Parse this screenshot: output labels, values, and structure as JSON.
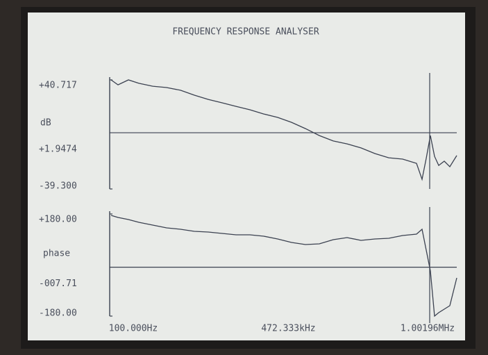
{
  "chart_data": [
    {
      "type": "line",
      "title": "FREQUENCY RESPONSE ANALYSER",
      "ylabel": "dB",
      "color": "#3b4150",
      "x": [
        100,
        21927,
        54667,
        87408,
        131063,
        174718,
        218372,
        262027,
        305682,
        349337,
        392992,
        436646,
        480301,
        523956,
        567611,
        611266,
        654920,
        698575,
        742230,
        785885,
        829540,
        873194,
        916849,
        960504,
        977966,
        991062,
        1004158,
        1017254,
        1030350,
        1047812,
        1065274,
        1087100
      ],
      "values": [
        40.7,
        37.1,
        40.7,
        38.2,
        36.1,
        35.1,
        33.1,
        29.5,
        26.4,
        23.9,
        21.3,
        18.8,
        15.7,
        13.2,
        9.6,
        5.0,
        -0.1,
        -4.1,
        -6.2,
        -9.2,
        -13.3,
        -16.4,
        -17.4,
        -20.5,
        -32.2,
        -16.9,
        -0.1,
        -15.4,
        -22.0,
        -18.9,
        -23.0,
        -14.8
      ],
      "xlim": [
        100,
        1087100
      ],
      "ylim": [
        -39.3,
        40.717
      ],
      "yticks": [
        {
          "value": 40.717,
          "label": "+40.717"
        },
        {
          "value": 1.9474,
          "label": "+1.9474"
        },
        {
          "value": -39.3,
          "label": "-39.300"
        }
      ]
    },
    {
      "type": "line",
      "ylabel": "phase",
      "color": "#3b4150",
      "x": [
        100,
        21927,
        54667,
        87408,
        131063,
        174718,
        218372,
        262027,
        305682,
        349337,
        392992,
        436646,
        480301,
        523956,
        567611,
        611266,
        654920,
        698575,
        742230,
        785885,
        829540,
        873194,
        916849,
        960504,
        977966,
        991062,
        1004158,
        1017254,
        1030350,
        1047812,
        1065274,
        1087100
      ],
      "values": [
        175.1,
        167.8,
        160.4,
        150.6,
        140.8,
        131.0,
        126.1,
        118.8,
        116.3,
        111.4,
        106.5,
        106.5,
        101.6,
        91.8,
        79.6,
        72.2,
        74.7,
        89.4,
        96.7,
        86.9,
        91.8,
        94.3,
        104.1,
        109.0,
        126.1,
        52.7,
        -20.8,
        -180,
        -167.8,
        -155.5,
        -143.3,
        -45.3
      ],
      "xlim": [
        100,
        1087100
      ],
      "ylim": [
        -180,
        180
      ],
      "yticks": [
        {
          "value": 180,
          "label": "+180.00"
        },
        {
          "value": -7.71,
          "label": "-007.71"
        },
        {
          "value": -180,
          "label": "-180.00"
        }
      ],
      "xticks": [
        {
          "value": 100,
          "label": "100.000Hz"
        },
        {
          "value": 472333,
          "label": "472.333kHz"
        },
        {
          "value": 1001960,
          "label": "1.00196MHz"
        }
      ]
    }
  ]
}
